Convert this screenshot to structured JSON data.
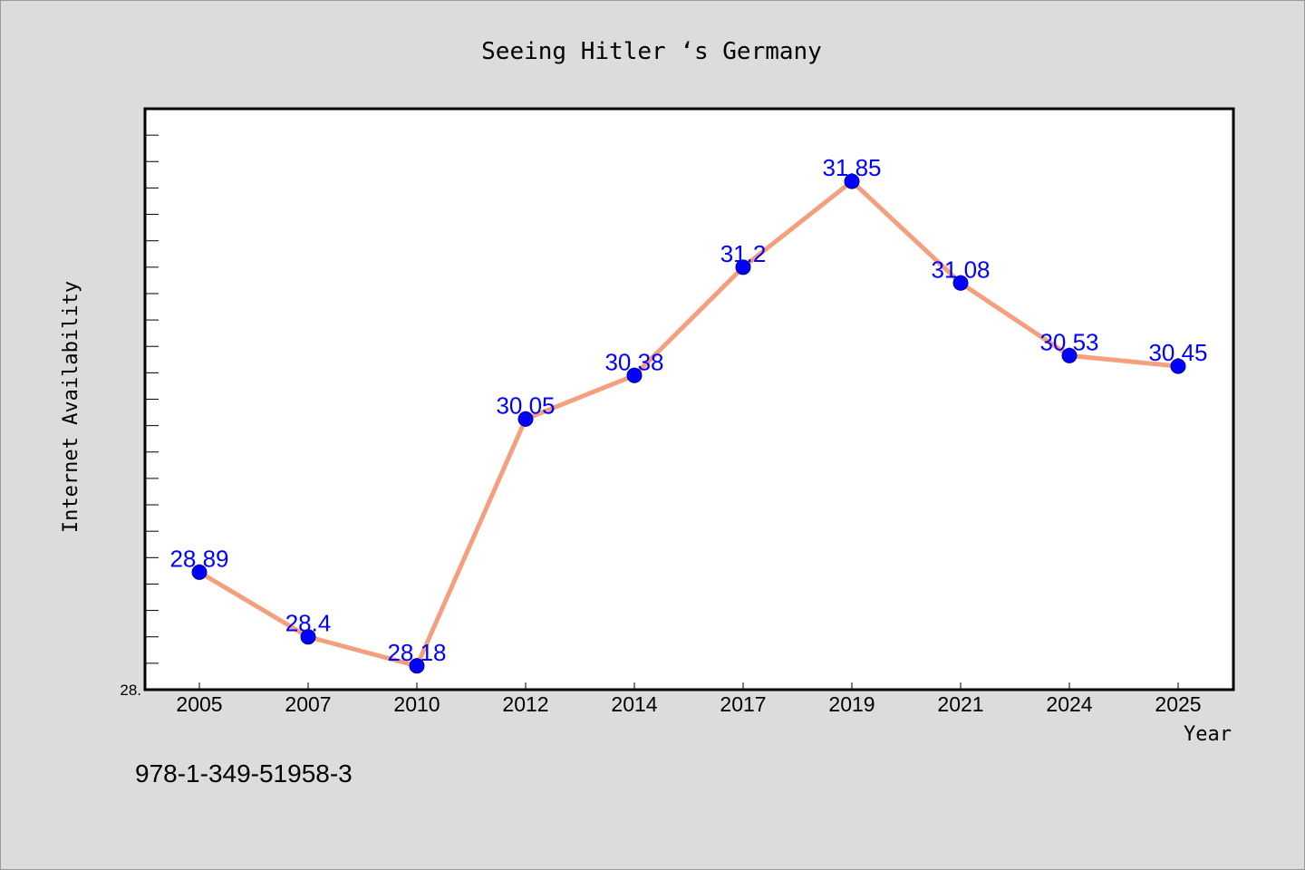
{
  "chart_data": {
    "type": "line",
    "title": "Seeing Hitler ‘s Germany",
    "xlabel": "Year",
    "ylabel": "Internet Availability",
    "categories": [
      "2005",
      "2007",
      "2010",
      "2012",
      "2014",
      "2017",
      "2019",
      "2021",
      "2024",
      "2025"
    ],
    "series": [
      {
        "values": [
          28.89,
          28.4,
          28.18,
          30.05,
          30.38,
          31.2,
          31.85,
          31.08,
          30.53,
          30.45
        ],
        "labels": [
          "28.89",
          "28.4",
          "28.18",
          "30.05",
          "30.38",
          "31.2",
          "31.85",
          "31.08",
          "30.53",
          "30.45"
        ],
        "line_color": "#f4a07e",
        "marker_color": "#0000ff"
      }
    ],
    "ylim": [
      28.0,
      32.4
    ],
    "y_tick_label": "28.",
    "grid": false,
    "legend": "none"
  },
  "footer_text": "978-1-349-51958-3"
}
